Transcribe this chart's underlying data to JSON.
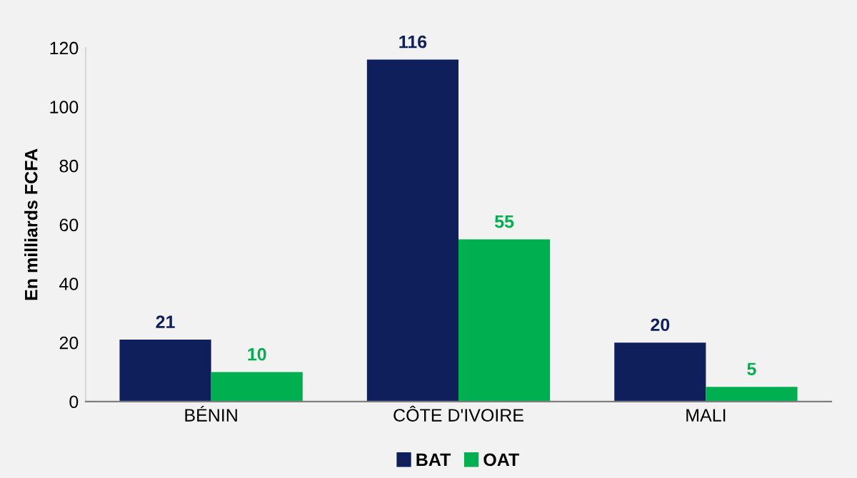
{
  "chart_data": {
    "type": "bar",
    "ylabel": "En milliards FCFA",
    "categories": [
      "BÉNIN",
      "CÔTE D'IVOIRE",
      "MALI"
    ],
    "series": [
      {
        "name": "BAT",
        "color": "#0f1f5c",
        "values": [
          21,
          116,
          20
        ]
      },
      {
        "name": "OAT",
        "color": "#00b050",
        "values": [
          10,
          55,
          5
        ]
      }
    ],
    "ylim": [
      0,
      120
    ],
    "yticks": [
      0,
      20,
      40,
      60,
      80,
      100,
      120
    ],
    "grid": false,
    "legend": "bottom",
    "data_labels": true
  }
}
